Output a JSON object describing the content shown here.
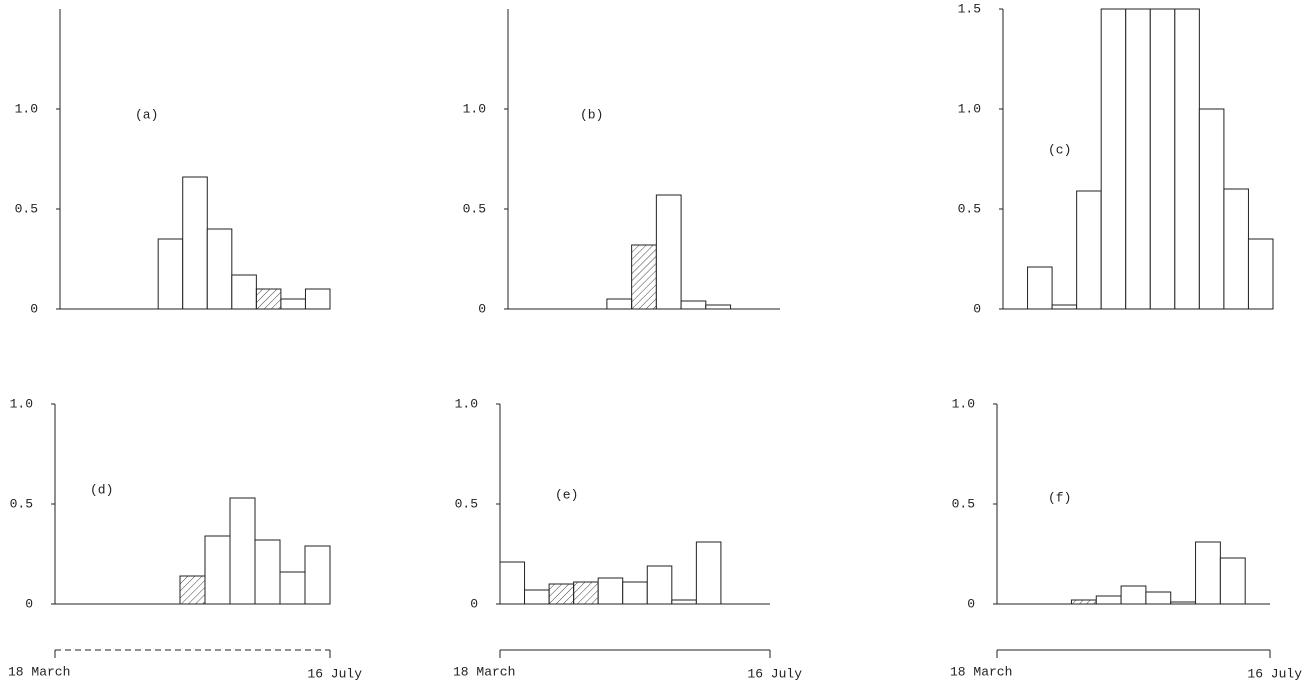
{
  "chart_data": [
    {
      "type": "bar",
      "label": "(a)",
      "categories": [
        null,
        null,
        null,
        null,
        null,
        null,
        null,
        null,
        null,
        null,
        null
      ],
      "values": [
        0,
        0,
        0,
        0,
        0.35,
        0.66,
        0.4,
        0.17,
        0.1,
        0.05,
        0.1
      ],
      "hatched": [
        false,
        false,
        false,
        false,
        false,
        false,
        false,
        false,
        true,
        false,
        false
      ],
      "color": "#ffffff",
      "ylim": [
        0,
        1.5
      ],
      "yticks": [
        0,
        0.5,
        {
          "value": 1,
          "label": "1.0"
        }
      ]
    },
    {
      "type": "bar",
      "label": "(b)",
      "categories": [
        null,
        null,
        null,
        null,
        null,
        null,
        null,
        null,
        null,
        null,
        null
      ],
      "values": [
        0,
        0,
        0,
        0,
        0.05,
        0.32,
        0.57,
        0.04,
        0.02,
        0,
        0
      ],
      "hatched": [
        false,
        false,
        false,
        false,
        false,
        true,
        false,
        false,
        false,
        false,
        false
      ],
      "color": "#ffffff",
      "ylim": [
        0,
        1.5
      ],
      "yticks": [
        0,
        0.5,
        {
          "value": 1,
          "label": "1.0"
        }
      ]
    },
    {
      "type": "bar",
      "label": "(c)",
      "categories": [
        null,
        null,
        null,
        null,
        null,
        null,
        null,
        null,
        null,
        null,
        null
      ],
      "values": [
        0,
        0.21,
        0.02,
        0.59,
        1.5,
        1.5,
        1.5,
        1.5,
        1.0,
        0.6,
        0.35
      ],
      "hatched": [
        false,
        false,
        false,
        false,
        false,
        false,
        false,
        false,
        false,
        false,
        false
      ],
      "color": "#ffffff",
      "ylim": [
        0,
        1.5
      ],
      "yticks": [
        0,
        0.5,
        {
          "value": 1,
          "label": "1.0"
        },
        1.5
      ]
    },
    {
      "type": "bar",
      "label": "(d)",
      "categories": [
        null,
        null,
        null,
        null,
        null,
        null,
        null,
        null,
        null,
        null,
        null
      ],
      "values": [
        0,
        0,
        0,
        0,
        0,
        0.14,
        0.34,
        0.53,
        0.32,
        0.16,
        0.29
      ],
      "hatched": [
        false,
        false,
        false,
        false,
        false,
        true,
        false,
        false,
        false,
        false,
        false
      ],
      "color": "#ffffff",
      "ylim": [
        0,
        1
      ],
      "yticks": [
        0,
        0.5,
        {
          "value": 1,
          "label": "1.0"
        }
      ],
      "x_labels": [
        "18 March",
        "16 July"
      ],
      "bracket": "dashed"
    },
    {
      "type": "bar",
      "label": "(e)",
      "categories": [
        null,
        null,
        null,
        null,
        null,
        null,
        null,
        null,
        null,
        null,
        null
      ],
      "values": [
        0.21,
        0.07,
        0.1,
        0.11,
        0.13,
        0.11,
        0.19,
        0.02,
        0.31,
        0,
        0
      ],
      "hatched": [
        false,
        false,
        true,
        true,
        false,
        false,
        false,
        false,
        false,
        false,
        false
      ],
      "color": "#ffffff",
      "ylim": [
        0,
        1
      ],
      "yticks": [
        0,
        0.5,
        {
          "value": 1,
          "label": "1.0"
        }
      ],
      "x_labels": [
        "18 March",
        "16 July"
      ],
      "bracket": "solid"
    },
    {
      "type": "bar",
      "label": "(f)",
      "categories": [
        null,
        null,
        null,
        null,
        null,
        null,
        null,
        null,
        null,
        null,
        null
      ],
      "values": [
        0,
        0,
        0,
        0.02,
        0.04,
        0.09,
        0.06,
        0.01,
        0.31,
        0.23,
        0
      ],
      "hatched": [
        false,
        false,
        false,
        true,
        false,
        false,
        false,
        false,
        false,
        false,
        false
      ],
      "color": "#ffffff",
      "ylim": [
        0,
        1
      ],
      "yticks": [
        0,
        0.5,
        {
          "value": 1,
          "label": "1.0"
        }
      ],
      "x_labels": [
        "18 March",
        "16 July"
      ],
      "bracket": "solid"
    }
  ]
}
